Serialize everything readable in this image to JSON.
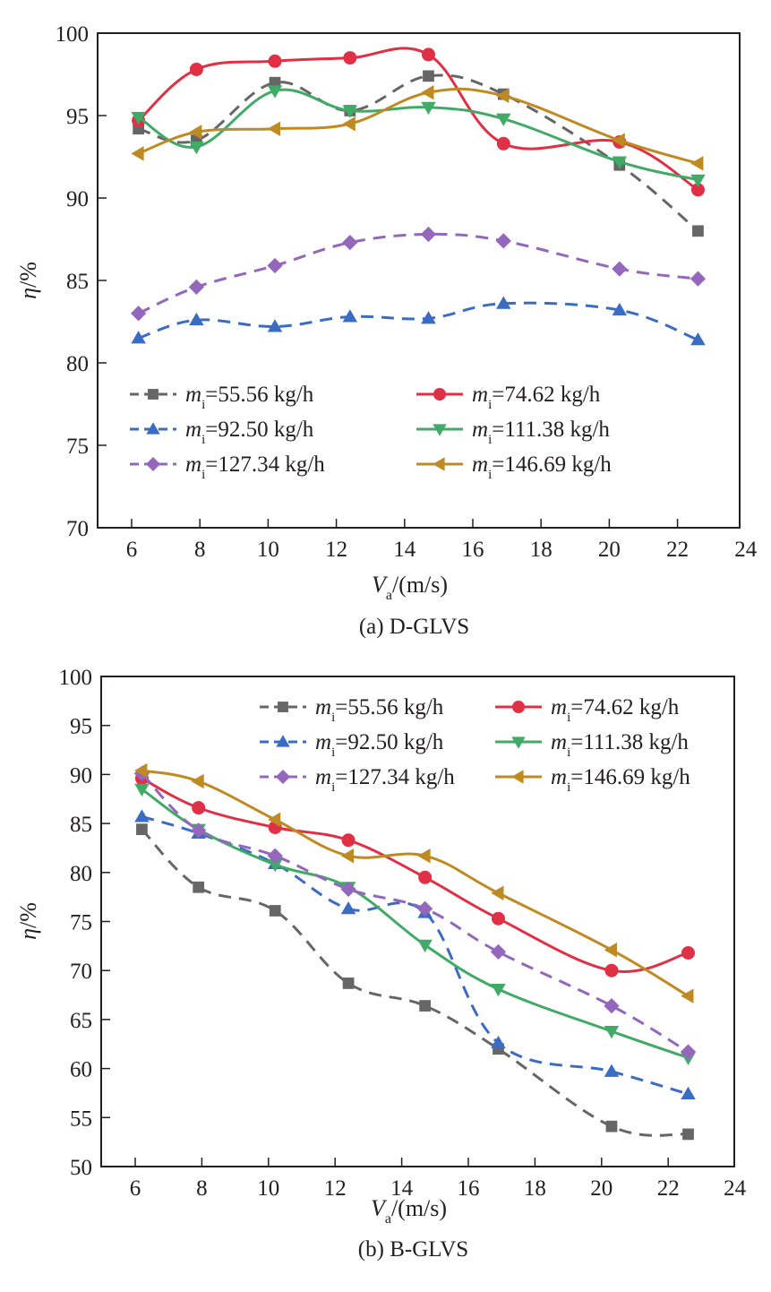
{
  "chart_data": [
    {
      "type": "line",
      "caption": "(a) D-GLVS",
      "xlabel_main": "V",
      "xlabel_sub": "a",
      "xlabel_unit": "/(m/s)",
      "ylabel_main": "η",
      "ylabel_unit": "/%",
      "xlim": [
        5,
        24
      ],
      "ylim": [
        70,
        100
      ],
      "xticks": [
        6,
        8,
        10,
        12,
        14,
        16,
        18,
        20,
        22,
        24
      ],
      "yticks": [
        70,
        75,
        80,
        85,
        90,
        95,
        100
      ],
      "grid": false,
      "legend_position": "lower-left",
      "x": [
        6.2,
        7.9,
        10.2,
        12.4,
        14.7,
        16.9,
        20.3,
        22.6
      ],
      "series": [
        {
          "name": "55.56 kg/h",
          "label_prefix": "m",
          "label_sub": "i",
          "label_value": "=55.56 kg/h",
          "color": "#666666",
          "marker": "square",
          "dashed": true,
          "values": [
            94.2,
            93.5,
            97.0,
            95.3,
            97.4,
            96.3,
            92.0,
            88.0
          ]
        },
        {
          "name": "74.62 kg/h",
          "label_prefix": "m",
          "label_sub": "i",
          "label_value": "=74.62 kg/h",
          "color": "#e03045",
          "marker": "circle",
          "dashed": false,
          "values": [
            94.7,
            97.8,
            98.3,
            98.5,
            98.7,
            93.3,
            93.4,
            90.5
          ]
        },
        {
          "name": "92.50 kg/h",
          "label_prefix": "m",
          "label_sub": "i",
          "label_value": "=92.50 kg/h",
          "color": "#3a6cc4",
          "marker": "triangle-up",
          "dashed": true,
          "values": [
            81.5,
            82.6,
            82.2,
            82.8,
            82.7,
            83.6,
            83.2,
            81.4
          ]
        },
        {
          "name": "111.38 kg/h",
          "label_prefix": "m",
          "label_sub": "i",
          "label_value": "=111.38 kg/h",
          "color": "#41aa66",
          "marker": "triangle-down",
          "dashed": false,
          "values": [
            94.9,
            93.1,
            96.5,
            95.3,
            95.5,
            94.8,
            92.2,
            91.1
          ]
        },
        {
          "name": "127.34 kg/h",
          "label_prefix": "m",
          "label_sub": "i",
          "label_value": "=127.34 kg/h",
          "color": "#9467bd",
          "marker": "diamond",
          "dashed": true,
          "values": [
            83.0,
            84.6,
            85.9,
            87.3,
            87.8,
            87.4,
            85.7,
            85.1
          ]
        },
        {
          "name": "146.69 kg/h",
          "label_prefix": "m",
          "label_sub": "i",
          "label_value": "=146.69 kg/h",
          "color": "#c08a22",
          "marker": "triangle-left",
          "dashed": false,
          "values": [
            92.7,
            94.0,
            94.2,
            94.5,
            96.4,
            96.2,
            93.5,
            92.1
          ]
        }
      ]
    },
    {
      "type": "line",
      "caption": "(b) B-GLVS",
      "xlabel_main": "V",
      "xlabel_sub": "a",
      "xlabel_unit": "/(m/s)",
      "ylabel_main": "η",
      "ylabel_unit": "/%",
      "xlim": [
        5,
        24
      ],
      "ylim": [
        50,
        100
      ],
      "xticks": [
        6,
        8,
        10,
        12,
        14,
        16,
        18,
        20,
        22,
        24
      ],
      "yticks": [
        50,
        55,
        60,
        65,
        70,
        75,
        80,
        85,
        90,
        95,
        100
      ],
      "grid": false,
      "legend_position": "top-right",
      "x": [
        6.2,
        7.9,
        10.2,
        12.4,
        14.7,
        16.9,
        20.3,
        22.6
      ],
      "series": [
        {
          "name": "55.56 kg/h",
          "label_prefix": "m",
          "label_sub": "i",
          "label_value": "=55.56 kg/h",
          "color": "#666666",
          "marker": "square",
          "dashed": true,
          "values": [
            84.4,
            78.5,
            76.1,
            68.7,
            66.4,
            62.0,
            54.1,
            53.3
          ]
        },
        {
          "name": "74.62 kg/h",
          "label_prefix": "m",
          "label_sub": "i",
          "label_value": "=74.62 kg/h",
          "color": "#e03045",
          "marker": "circle",
          "dashed": false,
          "values": [
            89.6,
            86.6,
            84.6,
            83.3,
            79.5,
            75.3,
            70.0,
            71.8
          ]
        },
        {
          "name": "92.50 kg/h",
          "label_prefix": "m",
          "label_sub": "i",
          "label_value": "=92.50 kg/h",
          "color": "#3a6cc4",
          "marker": "triangle-up",
          "dashed": true,
          "values": [
            85.7,
            84.0,
            80.9,
            76.3,
            75.9,
            62.6,
            59.7,
            57.4
          ]
        },
        {
          "name": "111.38 kg/h",
          "label_prefix": "m",
          "label_sub": "i",
          "label_value": "=111.38 kg/h",
          "color": "#41aa66",
          "marker": "triangle-down",
          "dashed": false,
          "values": [
            88.5,
            84.4,
            80.8,
            78.5,
            72.6,
            68.1,
            63.8,
            61.1
          ]
        },
        {
          "name": "127.34 kg/h",
          "label_prefix": "m",
          "label_sub": "i",
          "label_value": "=127.34 kg/h",
          "color": "#9467bd",
          "marker": "diamond",
          "dashed": true,
          "values": [
            90.1,
            84.3,
            81.7,
            78.3,
            76.3,
            71.9,
            66.4,
            61.7
          ]
        },
        {
          "name": "146.69 kg/h",
          "label_prefix": "m",
          "label_sub": "i",
          "label_value": "=146.69 kg/h",
          "color": "#c08a22",
          "marker": "triangle-left",
          "dashed": false,
          "values": [
            90.4,
            89.3,
            85.4,
            81.7,
            81.7,
            77.9,
            72.1,
            67.4
          ]
        }
      ]
    }
  ]
}
